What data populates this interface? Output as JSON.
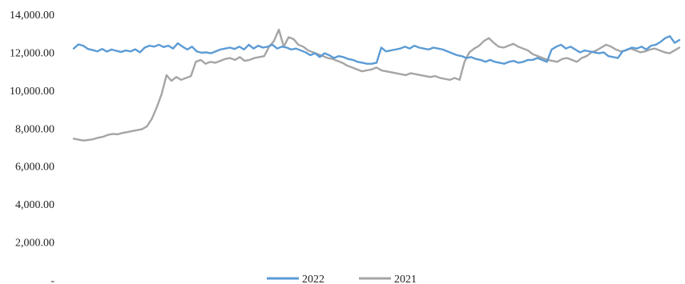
{
  "chart_data": {
    "type": "line",
    "title": "",
    "xlabel": "",
    "ylabel": "",
    "ylim": [
      0,
      14000
    ],
    "y_ticks": [
      {
        "value": 0,
        "label": "-"
      },
      {
        "value": 2000,
        "label": "2,000.00"
      },
      {
        "value": 4000,
        "label": "4,000.00"
      },
      {
        "value": 6000,
        "label": "6,000.00"
      },
      {
        "value": 8000,
        "label": "8,000.00"
      },
      {
        "value": 10000,
        "label": "10,000.00"
      },
      {
        "value": 12000,
        "label": "12,000.00"
      },
      {
        "value": 14000,
        "label": "14,000.00"
      }
    ],
    "grid": false,
    "legend_position": "bottom",
    "series": [
      {
        "name": "2022",
        "color": "#5b9bd5",
        "values": [
          12200,
          12420,
          12350,
          12180,
          12120,
          12050,
          12180,
          12040,
          12150,
          12080,
          12020,
          12100,
          12050,
          12160,
          12000,
          12250,
          12350,
          12300,
          12400,
          12280,
          12350,
          12200,
          12480,
          12300,
          12150,
          12300,
          12050,
          11980,
          12000,
          11950,
          12050,
          12150,
          12200,
          12250,
          12180,
          12300,
          12150,
          12400,
          12200,
          12350,
          12250,
          12300,
          12400,
          12200,
          12300,
          12250,
          12150,
          12200,
          12100,
          12000,
          11850,
          11950,
          11750,
          11950,
          11850,
          11700,
          11800,
          11750,
          11650,
          11600,
          11500,
          11450,
          11400,
          11400,
          11450,
          12250,
          12050,
          12100,
          12150,
          12200,
          12300,
          12200,
          12350,
          12250,
          12200,
          12150,
          12250,
          12200,
          12150,
          12050,
          11950,
          11850,
          11800,
          11700,
          11750,
          11650,
          11600,
          11500,
          11600,
          11500,
          11450,
          11400,
          11500,
          11550,
          11450,
          11500,
          11600,
          11600,
          11700,
          11600,
          11500,
          12150,
          12300,
          12400,
          12200,
          12300,
          12150,
          12000,
          12100,
          12050,
          12000,
          11950,
          12000,
          11800,
          11750,
          11700,
          12050,
          12150,
          12250,
          12200,
          12300,
          12150,
          12350,
          12400,
          12550,
          12750,
          12850,
          12500,
          12650
        ]
      },
      {
        "name": "2021",
        "color": "#a5a5a5",
        "values": [
          7450,
          7400,
          7350,
          7380,
          7420,
          7500,
          7550,
          7650,
          7700,
          7680,
          7750,
          7800,
          7850,
          7900,
          7950,
          8100,
          8500,
          9100,
          9800,
          10800,
          10500,
          10700,
          10550,
          10650,
          10750,
          11500,
          11600,
          11400,
          11500,
          11450,
          11550,
          11650,
          11700,
          11600,
          11750,
          11550,
          11600,
          11700,
          11750,
          11800,
          12300,
          12600,
          13200,
          12300,
          12800,
          12700,
          12400,
          12300,
          12100,
          12000,
          11900,
          11800,
          11700,
          11650,
          11550,
          11450,
          11300,
          11200,
          11100,
          11000,
          11050,
          11100,
          11200,
          11050,
          11000,
          10950,
          10900,
          10850,
          10800,
          10900,
          10850,
          10800,
          10750,
          10700,
          10750,
          10650,
          10600,
          10550,
          10650,
          10550,
          11500,
          12000,
          12200,
          12350,
          12600,
          12750,
          12500,
          12300,
          12250,
          12350,
          12450,
          12300,
          12200,
          12100,
          11900,
          11800,
          11700,
          11600,
          11550,
          11500,
          11650,
          11700,
          11600,
          11500,
          11700,
          11800,
          12000,
          12100,
          12250,
          12400,
          12300,
          12150,
          12050,
          12100,
          12200,
          12100,
          12000,
          12050,
          12150,
          12200,
          12100,
          12000,
          11950,
          12100,
          12250
        ]
      }
    ]
  }
}
